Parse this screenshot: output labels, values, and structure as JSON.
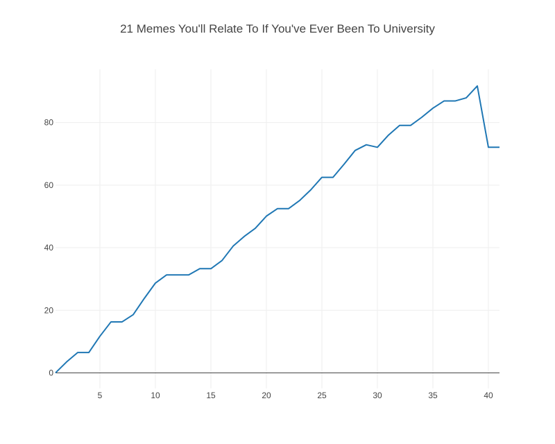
{
  "chart_data": {
    "type": "line",
    "title": "21 Memes You'll Relate To If You've Ever Been To University",
    "xlabel": "",
    "ylabel": "",
    "xlim": [
      1,
      41
    ],
    "ylim": [
      -5,
      97
    ],
    "x_ticks": [
      5,
      10,
      15,
      20,
      25,
      30,
      35,
      40
    ],
    "y_ticks": [
      0,
      20,
      40,
      60,
      80
    ],
    "grid": true,
    "line_color": "#1f77b4",
    "series": [
      {
        "x": [
          1,
          2,
          3,
          4,
          5,
          6,
          7,
          8,
          9,
          10,
          11,
          12,
          13,
          14,
          15,
          16,
          17,
          18,
          19,
          20,
          21,
          22,
          23,
          24,
          25,
          26,
          27,
          28,
          29,
          30,
          31,
          32,
          33,
          34,
          35,
          36,
          37,
          38,
          39,
          40,
          41
        ],
        "values": [
          0,
          3.5,
          6.5,
          6.5,
          11.7,
          16.3,
          16.3,
          18.6,
          23.8,
          28.7,
          31.3,
          31.3,
          31.3,
          33.3,
          33.3,
          35.9,
          40.5,
          43.6,
          46.2,
          50.1,
          52.5,
          52.5,
          55.1,
          58.5,
          62.5,
          62.5,
          66.7,
          71.1,
          72.9,
          72.1,
          76.0,
          79.1,
          79.1,
          81.7,
          84.6,
          86.9,
          86.9,
          87.9,
          91.7,
          72.1,
          72.1
        ]
      }
    ]
  }
}
